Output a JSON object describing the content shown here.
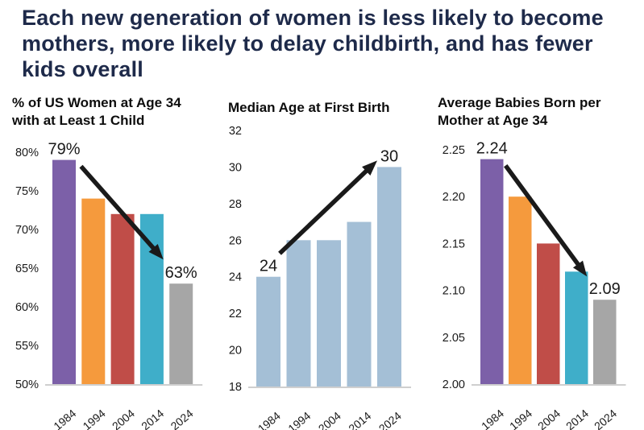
{
  "header": {
    "title_lines": [
      "Each new generation of women is less likely to become",
      "mothers, more likely to delay childbirth, and has fewer",
      "kids overall"
    ],
    "title_color": "#1e2a4a"
  },
  "palette": {
    "bar_1984": "#7c60a8",
    "bar_1994": "#f59a3d",
    "bar_2004": "#c04d48",
    "bar_2014": "#3faec9",
    "bar_2024": "#a6a6a6",
    "neutral_bar": "#a4bfd6",
    "arrow": "#1a1a1a",
    "axis_line": "#cfcfcf"
  },
  "chart_data": [
    {
      "type": "bar",
      "title_lines": [
        "% of US Women at Age 34",
        "with at Least 1 Child"
      ],
      "categories": [
        "1984",
        "1994",
        "2004",
        "2014",
        "2024"
      ],
      "values": [
        79,
        74,
        72,
        72,
        63
      ],
      "bar_colors": [
        "#7c60a8",
        "#f59a3d",
        "#c04d48",
        "#3faec9",
        "#a6a6a6"
      ],
      "ylim": [
        50,
        80
      ],
      "grid": false,
      "legend": "none",
      "yticks": [
        {
          "value": 80,
          "label": "80%"
        },
        {
          "value": 75,
          "label": "75%"
        },
        {
          "value": 70,
          "label": "70%"
        },
        {
          "value": 65,
          "label": "65%"
        },
        {
          "value": 60,
          "label": "60%"
        },
        {
          "value": 55,
          "label": "55%"
        },
        {
          "value": 50,
          "label": "50%"
        }
      ],
      "value_labels": [
        {
          "bar": 0,
          "text": "79%"
        },
        {
          "bar": 4,
          "text": "63%"
        }
      ],
      "trend_arrow": {
        "direction": "down",
        "from": {
          "bar": 0,
          "dx": 21,
          "dy": 8
        },
        "to": {
          "bar": 4,
          "dx": -22,
          "dy": -30
        }
      }
    },
    {
      "type": "bar",
      "title_lines": [
        "Median Age at First Birth"
      ],
      "categories": [
        "1984",
        "1994",
        "2004",
        "2014",
        "2024"
      ],
      "values": [
        24,
        26,
        26,
        27,
        30
      ],
      "bar_colors": [
        "#a4bfd6",
        "#a4bfd6",
        "#a4bfd6",
        "#a4bfd6",
        "#a4bfd6"
      ],
      "ylim": [
        18,
        32
      ],
      "grid": false,
      "legend": "none",
      "yticks": [
        {
          "value": 32,
          "label": "32"
        },
        {
          "value": 30,
          "label": "30"
        },
        {
          "value": 28,
          "label": "28"
        },
        {
          "value": 26,
          "label": "26"
        },
        {
          "value": 24,
          "label": "24"
        },
        {
          "value": 22,
          "label": "22"
        },
        {
          "value": 20,
          "label": "20"
        },
        {
          "value": 18,
          "label": "18"
        }
      ],
      "value_labels": [
        {
          "bar": 0,
          "text": "24"
        },
        {
          "bar": 4,
          "text": "30"
        }
      ],
      "trend_arrow": {
        "direction": "up",
        "from": {
          "bar": 0,
          "dx": 14,
          "dy": -29
        },
        "to": {
          "bar": 4,
          "dx": -15,
          "dy": -8
        }
      }
    },
    {
      "type": "bar",
      "title_lines": [
        "Average Babies Born per",
        "Mother at Age 34"
      ],
      "categories": [
        "1984",
        "1994",
        "2004",
        "2014",
        "2024"
      ],
      "values": [
        2.24,
        2.2,
        2.15,
        2.12,
        2.09
      ],
      "bar_colors": [
        "#7c60a8",
        "#f59a3d",
        "#c04d48",
        "#3faec9",
        "#a6a6a6"
      ],
      "ylim": [
        2.0,
        2.25
      ],
      "grid": false,
      "legend": "none",
      "yticks": [
        {
          "value": 2.25,
          "label": "2.25"
        },
        {
          "value": 2.2,
          "label": "2.20"
        },
        {
          "value": 2.15,
          "label": "2.15"
        },
        {
          "value": 2.1,
          "label": "2.10"
        },
        {
          "value": 2.05,
          "label": "2.05"
        },
        {
          "value": 2.0,
          "label": "2.00"
        }
      ],
      "value_labels": [
        {
          "bar": 0,
          "text": "2.24"
        },
        {
          "bar": 4,
          "text": "2.09"
        }
      ],
      "trend_arrow": {
        "direction": "down",
        "from": {
          "bar": 0,
          "dx": 17,
          "dy": 8
        },
        "to": {
          "bar": 3,
          "dx": 13,
          "dy": 6
        }
      }
    }
  ]
}
